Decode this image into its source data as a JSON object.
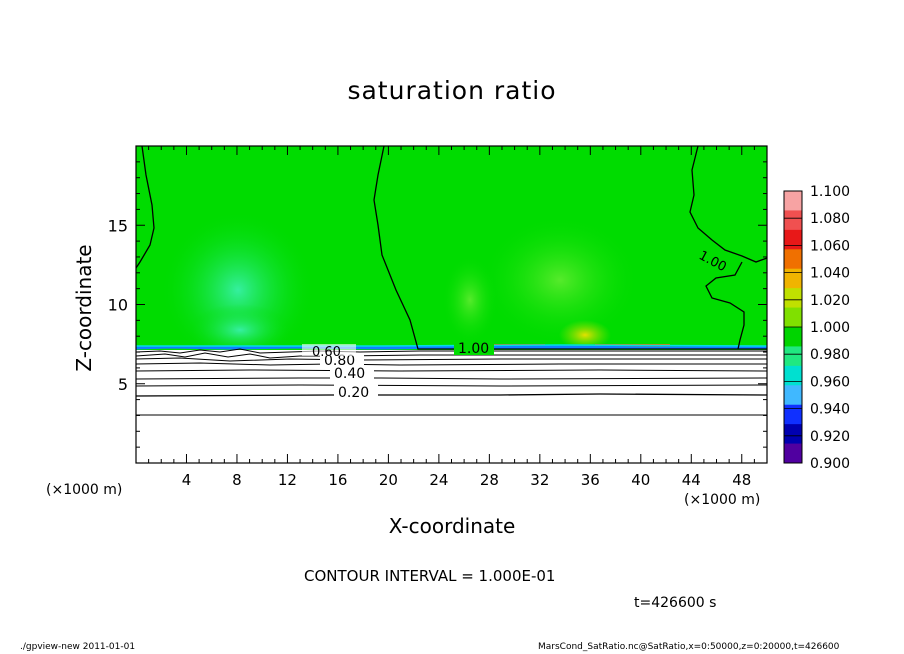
{
  "chart_data": {
    "type": "heatmap",
    "title": "saturation ratio",
    "xlabel": "X-coordinate",
    "ylabel": "Z-coordinate",
    "x_unit": "(×1000 m)",
    "xlim": [
      0,
      50
    ],
    "ylim": [
      0,
      20
    ],
    "x_ticks": [
      4,
      8,
      12,
      16,
      20,
      24,
      28,
      32,
      36,
      40,
      44,
      48
    ],
    "y_ticks": [
      5,
      10,
      15
    ],
    "colorbar": {
      "levels": [
        "1.100",
        "1.080",
        "1.060",
        "1.040",
        "1.020",
        "1.000",
        "0.980",
        "0.960",
        "0.940",
        "0.920",
        "0.900"
      ],
      "colors": [
        "#f7a3a3",
        "#f05050",
        "#e81818",
        "#f07000",
        "#f0b400",
        "#c0e000",
        "#80e000",
        "#00d400",
        "#20e880",
        "#00e0d0",
        "#40b8ff",
        "#1030ff",
        "#0000b0",
        "#5000a0"
      ]
    },
    "contour_labels": [
      "1.00",
      "1.00",
      "0.80",
      "0.60",
      "0.40",
      "0.20"
    ],
    "contour_interval_text": "CONTOUR INTERVAL = 1.000E-01",
    "time_text": "t=426600 s"
  },
  "footer": {
    "left": "./gpview-new   2011-01-01",
    "right": "MarsCond_SatRatio.nc@SatRatio,x=0:50000,z=0:20000,t=426600"
  },
  "colors": {
    "field_main": "#00dc00",
    "field_light": "#20e860",
    "field_cyan": "#30f0a0",
    "hot": "#f0b000"
  }
}
